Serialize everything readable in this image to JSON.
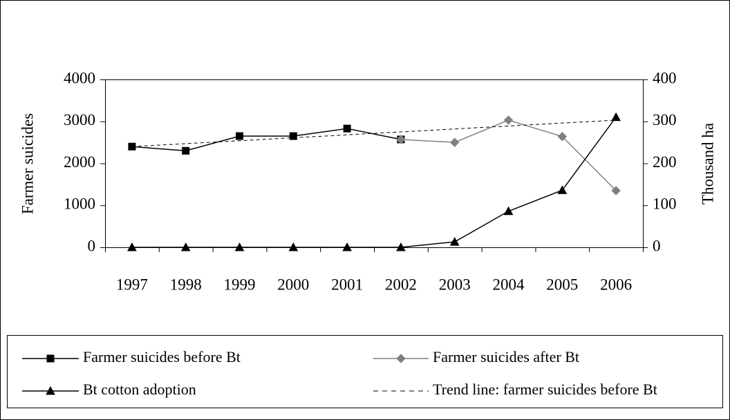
{
  "chart_data": {
    "type": "line",
    "y_label": "Farmer suicides",
    "y2_label": "Thousand ha",
    "categories": [
      "1997",
      "1998",
      "1999",
      "2000",
      "2001",
      "2002",
      "2003",
      "2004",
      "2005",
      "2006"
    ],
    "series": [
      {
        "name": "Farmer suicides before Bt",
        "color": "#000000",
        "marker": "square",
        "values": [
          2400,
          2300,
          2650,
          2650,
          2830,
          2570,
          null,
          null,
          null,
          null
        ]
      },
      {
        "name": "Farmer suicides after Bt",
        "color": "#808080",
        "marker": "diamond",
        "values": [
          null,
          null,
          null,
          null,
          null,
          2570,
          2500,
          3030,
          2640,
          1350
        ]
      },
      {
        "name": "Bt cotton adoption",
        "color": "#000000",
        "marker": "triangle",
        "axis": "y2",
        "values": [
          0,
          0,
          0,
          0,
          0,
          0,
          13,
          86,
          136,
          310
        ]
      },
      {
        "name": "Trend line: farmer suicides before Bt",
        "color": "#000000",
        "dashed": true,
        "values": [
          2400,
          2470,
          2540,
          2610,
          2680,
          2750,
          2820,
          2890,
          2960,
          3030
        ]
      }
    ],
    "ylim": [
      0,
      4000
    ],
    "yticks": [
      0,
      1000,
      2000,
      3000,
      4000
    ],
    "y2lim": [
      0,
      400
    ],
    "y2ticks": [
      0,
      100,
      200,
      300,
      400
    ],
    "legend": "bottom"
  }
}
